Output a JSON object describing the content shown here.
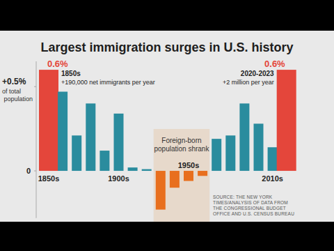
{
  "chart_data": {
    "type": "bar",
    "title": "Largest immigration surges in U.S. history",
    "categories": [
      "1850s",
      null,
      null,
      null,
      null,
      "1900s",
      null,
      null,
      null,
      null,
      "1950s",
      null,
      null,
      null,
      null,
      null,
      "2010s",
      null
    ],
    "values": [
      0.6,
      0.47,
      0.21,
      0.4,
      0.12,
      0.34,
      0.02,
      0.01,
      -0.23,
      -0.1,
      -0.06,
      -0.03,
      0.19,
      0.21,
      0.4,
      0.28,
      0.14,
      0.6
    ],
    "colors": [
      "#e4463b",
      "#2a8c9e",
      "#2a8c9e",
      "#2a8c9e",
      "#2a8c9e",
      "#2a8c9e",
      "#2a8c9e",
      "#2a8c9e",
      "#e86f1e",
      "#e86f1e",
      "#e86f1e",
      "#e86f1e",
      "#2a8c9e",
      "#2a8c9e",
      "#2a8c9e",
      "#2a8c9e",
      "#2a8c9e",
      "#e4463b"
    ],
    "data_labels": true,
    "value_labels": [
      "0.6%",
      null,
      null,
      null,
      null,
      null,
      null,
      null,
      null,
      null,
      null,
      null,
      null,
      null,
      null,
      null,
      null,
      "0.6%"
    ],
    "ylim": [
      -0.28,
      0.65
    ],
    "yticks": [
      0,
      {
        "value": 0.5,
        "label": "+0.5%"
      }
    ],
    "y_label": "of total population",
    "grid": false,
    "annotations": [
      "1850s",
      "+190,000 net immigrants per year",
      "2020-2023",
      "+2 million per year",
      "Foreign-born population shrank"
    ],
    "source": "SOURCE: THE NEW YORK TIMES/ANALYSIS OF DATA FROM THE CONGRESSIONAL BUDGET OFFICE AND U.S. CENSUS BUREAU"
  }
}
